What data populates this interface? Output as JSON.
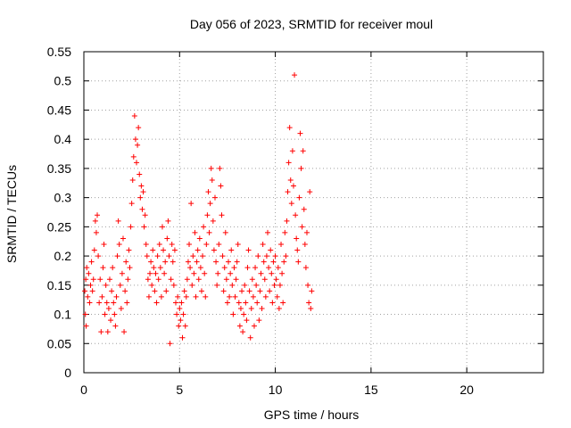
{
  "chart_data": {
    "type": "scatter",
    "title": "Day 056 of 2023, SRMTID for receiver moul",
    "xlabel": "GPS time / hours",
    "ylabel": "SRMTID / TECUs",
    "xlim": [
      0,
      24
    ],
    "ylim": [
      0,
      0.55
    ],
    "xticks": [
      0,
      5,
      10,
      15,
      20
    ],
    "yticks": [
      0,
      0.05,
      0.1,
      0.15,
      0.2,
      0.25,
      0.3,
      0.35,
      0.4,
      0.45,
      0.5,
      0.55
    ],
    "grid": true,
    "marker": "+",
    "color": "#ff0000",
    "series": [
      {
        "points": [
          [
            0.05,
            0.14
          ],
          [
            0.08,
            0.1
          ],
          [
            0.1,
            0.16
          ],
          [
            0.12,
            0.08
          ],
          [
            0.15,
            0.18
          ],
          [
            0.2,
            0.13
          ],
          [
            0.25,
            0.17
          ],
          [
            0.3,
            0.12
          ],
          [
            0.35,
            0.15
          ],
          [
            0.4,
            0.19
          ],
          [
            0.45,
            0.14
          ],
          [
            0.5,
            0.16
          ],
          [
            0.55,
            0.21
          ],
          [
            0.6,
            0.26
          ],
          [
            0.65,
            0.24
          ],
          [
            0.7,
            0.27
          ],
          [
            0.75,
            0.2
          ],
          [
            0.8,
            0.12
          ],
          [
            0.85,
            0.16
          ],
          [
            0.9,
            0.07
          ],
          [
            0.95,
            0.13
          ],
          [
            1.0,
            0.18
          ],
          [
            1.05,
            0.22
          ],
          [
            1.1,
            0.1
          ],
          [
            1.15,
            0.15
          ],
          [
            1.2,
            0.12
          ],
          [
            1.25,
            0.07
          ],
          [
            1.3,
            0.11
          ],
          [
            1.35,
            0.16
          ],
          [
            1.4,
            0.09
          ],
          [
            1.45,
            0.14
          ],
          [
            1.5,
            0.18
          ],
          [
            1.55,
            0.12
          ],
          [
            1.6,
            0.1
          ],
          [
            1.65,
            0.08
          ],
          [
            1.7,
            0.13
          ],
          [
            1.75,
            0.2
          ],
          [
            1.8,
            0.26
          ],
          [
            1.85,
            0.22
          ],
          [
            1.9,
            0.15
          ],
          [
            1.95,
            0.11
          ],
          [
            2.0,
            0.17
          ],
          [
            2.05,
            0.23
          ],
          [
            2.1,
            0.07
          ],
          [
            2.15,
            0.14
          ],
          [
            2.2,
            0.19
          ],
          [
            2.25,
            0.12
          ],
          [
            2.3,
            0.16
          ],
          [
            2.35,
            0.21
          ],
          [
            2.4,
            0.18
          ],
          [
            2.45,
            0.25
          ],
          [
            2.5,
            0.29
          ],
          [
            2.55,
            0.33
          ],
          [
            2.6,
            0.37
          ],
          [
            2.65,
            0.44
          ],
          [
            2.7,
            0.4
          ],
          [
            2.75,
            0.36
          ],
          [
            2.8,
            0.39
          ],
          [
            2.85,
            0.42
          ],
          [
            2.9,
            0.34
          ],
          [
            2.95,
            0.3
          ],
          [
            3.0,
            0.32
          ],
          [
            3.05,
            0.28
          ],
          [
            3.1,
            0.31
          ],
          [
            3.15,
            0.25
          ],
          [
            3.2,
            0.27
          ],
          [
            3.25,
            0.22
          ],
          [
            3.3,
            0.2
          ],
          [
            3.35,
            0.16
          ],
          [
            3.4,
            0.13
          ],
          [
            3.45,
            0.17
          ],
          [
            3.5,
            0.19
          ],
          [
            3.55,
            0.15
          ],
          [
            3.6,
            0.21
          ],
          [
            3.65,
            0.18
          ],
          [
            3.7,
            0.14
          ],
          [
            3.75,
            0.17
          ],
          [
            3.8,
            0.12
          ],
          [
            3.85,
            0.2
          ],
          [
            3.9,
            0.16
          ],
          [
            3.95,
            0.22
          ],
          [
            4.0,
            0.18
          ],
          [
            4.05,
            0.13
          ],
          [
            4.1,
            0.25
          ],
          [
            4.15,
            0.21
          ],
          [
            4.2,
            0.17
          ],
          [
            4.25,
            0.19
          ],
          [
            4.3,
            0.14
          ],
          [
            4.35,
            0.23
          ],
          [
            4.4,
            0.26
          ],
          [
            4.45,
            0.2
          ],
          [
            4.5,
            0.05
          ],
          [
            4.55,
            0.16
          ],
          [
            4.6,
            0.22
          ],
          [
            4.65,
            0.19
          ],
          [
            4.7,
            0.15
          ],
          [
            4.75,
            0.21
          ],
          [
            4.8,
            0.12
          ],
          [
            4.85,
            0.1
          ],
          [
            4.9,
            0.13
          ],
          [
            4.95,
            0.08
          ],
          [
            5.0,
            0.11
          ],
          [
            5.05,
            0.09
          ],
          [
            5.1,
            0.12
          ],
          [
            5.15,
            0.06
          ],
          [
            5.2,
            0.1
          ],
          [
            5.25,
            0.14
          ],
          [
            5.3,
            0.08
          ],
          [
            5.35,
            0.13
          ],
          [
            5.4,
            0.16
          ],
          [
            5.45,
            0.19
          ],
          [
            5.5,
            0.22
          ],
          [
            5.55,
            0.18
          ],
          [
            5.6,
            0.29
          ],
          [
            5.65,
            0.15
          ],
          [
            5.7,
            0.2
          ],
          [
            5.75,
            0.17
          ],
          [
            5.8,
            0.24
          ],
          [
            5.85,
            0.13
          ],
          [
            5.9,
            0.19
          ],
          [
            5.95,
            0.21
          ],
          [
            6.0,
            0.16
          ],
          [
            6.05,
            0.23
          ],
          [
            6.1,
            0.18
          ],
          [
            6.15,
            0.14
          ],
          [
            6.2,
            0.2
          ],
          [
            6.25,
            0.25
          ],
          [
            6.3,
            0.17
          ],
          [
            6.35,
            0.13
          ],
          [
            6.4,
            0.22
          ],
          [
            6.45,
            0.27
          ],
          [
            6.5,
            0.31
          ],
          [
            6.55,
            0.24
          ],
          [
            6.6,
            0.29
          ],
          [
            6.65,
            0.35
          ],
          [
            6.7,
            0.33
          ],
          [
            6.75,
            0.26
          ],
          [
            6.8,
            0.21
          ],
          [
            6.85,
            0.3
          ],
          [
            6.9,
            0.19
          ],
          [
            6.95,
            0.15
          ],
          [
            7.0,
            0.17
          ],
          [
            7.05,
            0.22
          ],
          [
            7.1,
            0.35
          ],
          [
            7.15,
            0.32
          ],
          [
            7.2,
            0.27
          ],
          [
            7.25,
            0.2
          ],
          [
            7.3,
            0.14
          ],
          [
            7.35,
            0.18
          ],
          [
            7.4,
            0.24
          ],
          [
            7.45,
            0.16
          ],
          [
            7.5,
            0.12
          ],
          [
            7.55,
            0.19
          ],
          [
            7.6,
            0.13
          ],
          [
            7.65,
            0.17
          ],
          [
            7.7,
            0.21
          ],
          [
            7.75,
            0.15
          ],
          [
            7.8,
            0.1
          ],
          [
            7.85,
            0.18
          ],
          [
            7.9,
            0.13
          ],
          [
            7.95,
            0.16
          ],
          [
            8.0,
            0.19
          ],
          [
            8.05,
            0.22
          ],
          [
            8.1,
            0.12
          ],
          [
            8.15,
            0.08
          ],
          [
            8.2,
            0.11
          ],
          [
            8.25,
            0.14
          ],
          [
            8.3,
            0.07
          ],
          [
            8.35,
            0.1
          ],
          [
            8.4,
            0.15
          ],
          [
            8.45,
            0.12
          ],
          [
            8.5,
            0.09
          ],
          [
            8.55,
            0.18
          ],
          [
            8.6,
            0.21
          ],
          [
            8.65,
            0.14
          ],
          [
            8.7,
            0.06
          ],
          [
            8.75,
            0.11
          ],
          [
            8.8,
            0.16
          ],
          [
            8.85,
            0.13
          ],
          [
            8.9,
            0.08
          ],
          [
            8.95,
            0.18
          ],
          [
            9.0,
            0.15
          ],
          [
            9.05,
            0.12
          ],
          [
            9.1,
            0.2
          ],
          [
            9.15,
            0.09
          ],
          [
            9.2,
            0.14
          ],
          [
            9.25,
            0.17
          ],
          [
            9.3,
            0.11
          ],
          [
            9.35,
            0.22
          ],
          [
            9.4,
            0.19
          ],
          [
            9.45,
            0.16
          ],
          [
            9.5,
            0.13
          ],
          [
            9.55,
            0.2
          ],
          [
            9.6,
            0.24
          ],
          [
            9.65,
            0.18
          ],
          [
            9.7,
            0.14
          ],
          [
            9.75,
            0.21
          ],
          [
            9.8,
            0.17
          ],
          [
            9.85,
            0.12
          ],
          [
            9.9,
            0.19
          ],
          [
            9.95,
            0.15
          ],
          [
            10.0,
            0.2
          ],
          [
            10.05,
            0.16
          ],
          [
            10.1,
            0.13
          ],
          [
            10.15,
            0.18
          ],
          [
            10.2,
            0.11
          ],
          [
            10.25,
            0.15
          ],
          [
            10.3,
            0.22
          ],
          [
            10.35,
            0.17
          ],
          [
            10.4,
            0.12
          ],
          [
            10.45,
            0.19
          ],
          [
            10.5,
            0.24
          ],
          [
            10.55,
            0.2
          ],
          [
            10.6,
            0.26
          ],
          [
            10.65,
            0.31
          ],
          [
            10.7,
            0.36
          ],
          [
            10.75,
            0.42
          ],
          [
            10.8,
            0.33
          ],
          [
            10.85,
            0.29
          ],
          [
            10.9,
            0.38
          ],
          [
            10.95,
            0.32
          ],
          [
            11.0,
            0.51
          ],
          [
            11.05,
            0.27
          ],
          [
            11.1,
            0.23
          ],
          [
            11.15,
            0.21
          ],
          [
            11.2,
            0.19
          ],
          [
            11.25,
            0.3
          ],
          [
            11.3,
            0.41
          ],
          [
            11.35,
            0.35
          ],
          [
            11.4,
            0.25
          ],
          [
            11.45,
            0.38
          ],
          [
            11.5,
            0.28
          ],
          [
            11.55,
            0.22
          ],
          [
            11.6,
            0.18
          ],
          [
            11.65,
            0.24
          ],
          [
            11.7,
            0.15
          ],
          [
            11.75,
            0.12
          ],
          [
            11.8,
            0.31
          ],
          [
            11.85,
            0.11
          ],
          [
            11.9,
            0.14
          ]
        ]
      }
    ]
  }
}
